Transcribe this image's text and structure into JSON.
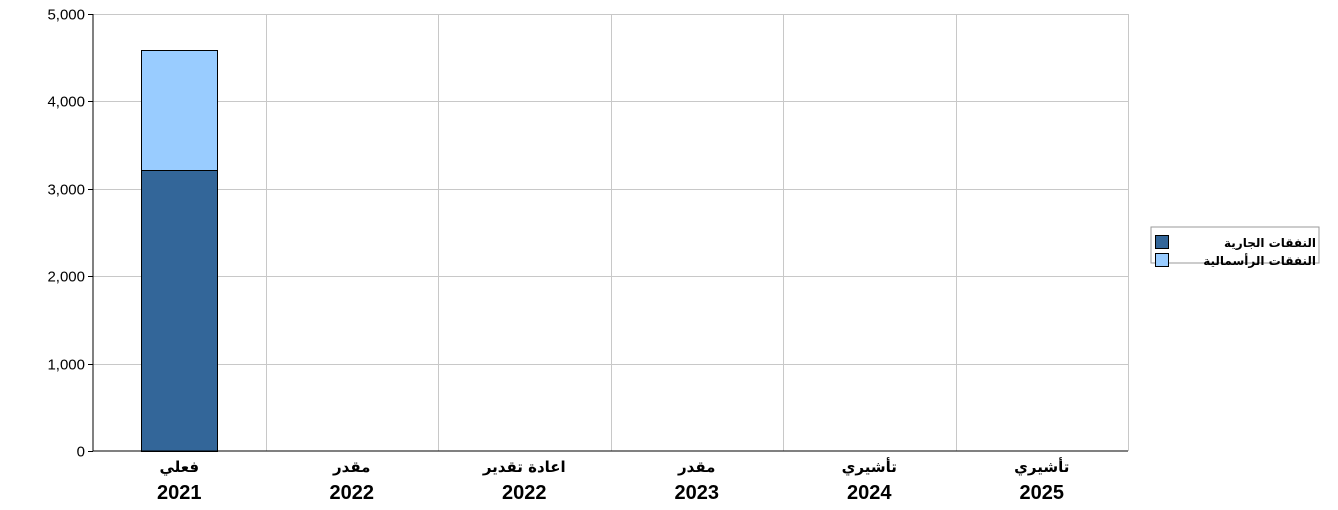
{
  "chart_data": {
    "type": "bar",
    "stacked": true,
    "categories": [
      {
        "label": "فعلي",
        "year": "2021"
      },
      {
        "label": "مقدر",
        "year": "2022"
      },
      {
        "label": "اعادة تقدير",
        "year": "2022"
      },
      {
        "label": "مقدر",
        "year": "2023"
      },
      {
        "label": "تأشيري",
        "year": "2024"
      },
      {
        "label": "تأشيري",
        "year": "2025"
      }
    ],
    "series": [
      {
        "name": "النفقات الجارية",
        "color": "#336699",
        "values": [
          3210,
          0,
          0,
          0,
          0,
          0
        ]
      },
      {
        "name": "النفقات الرأسمالية",
        "color": "#99ccff",
        "values": [
          1380,
          0,
          0,
          0,
          0,
          0
        ]
      }
    ],
    "ylim": [
      0,
      5000
    ],
    "yticks": [
      0,
      1000,
      2000,
      3000,
      4000,
      5000
    ],
    "ytick_labels": [
      "0",
      "1,000",
      "2,000",
      "3,000",
      "4,000",
      "5,000"
    ],
    "grid": true,
    "legend_position": "right"
  }
}
